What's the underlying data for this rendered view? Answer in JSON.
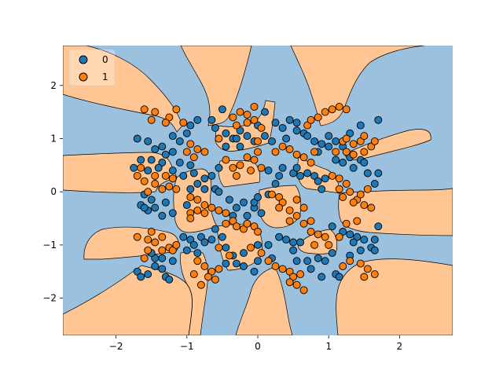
{
  "colors": {
    "class0": "#1f77b4",
    "class1": "#ff7f0e",
    "region0": "#9cc1de",
    "region1": "#ffc693",
    "edge": "#000000"
  },
  "chart_data": {
    "type": "scatter",
    "title": "",
    "xlabel": "",
    "ylabel": "",
    "xlim": [
      -2.75,
      2.75
    ],
    "ylim": [
      -2.7,
      2.75
    ],
    "xticks": [
      -2,
      -1,
      0,
      1,
      2
    ],
    "yticks": [
      -2,
      -1,
      0,
      1,
      2
    ],
    "xtick_labels": [
      "−2",
      "−1",
      "0",
      "1",
      "2"
    ],
    "ytick_labels": [
      "−2",
      "−1",
      "0",
      "1",
      "2"
    ],
    "grid": false,
    "legend_position": "top-left",
    "background": "decision regions of a two-class classifier over a checkerboard-like layout with curved boundaries",
    "series": [
      {
        "name": "0",
        "color": "#1f77b4",
        "points": [
          [
            -1.7,
            1.0
          ],
          [
            -1.55,
            0.95
          ],
          [
            -1.35,
            0.85
          ],
          [
            -1.2,
            0.75
          ],
          [
            -1.1,
            0.95
          ],
          [
            -1.0,
            1.1
          ],
          [
            -1.2,
            1.05
          ],
          [
            -1.3,
            0.7
          ],
          [
            -1.45,
            0.8
          ],
          [
            -1.65,
            0.6
          ],
          [
            -1.5,
            0.6
          ],
          [
            -1.35,
            0.55
          ],
          [
            -1.1,
            0.55
          ],
          [
            -0.95,
            0.5
          ],
          [
            -0.9,
            0.35
          ],
          [
            -1.05,
            0.3
          ],
          [
            -1.2,
            0.4
          ],
          [
            -1.4,
            0.45
          ],
          [
            -1.55,
            0.4
          ],
          [
            -1.75,
            0.45
          ],
          [
            -1.6,
            -0.05
          ],
          [
            -1.5,
            -0.15
          ],
          [
            -1.45,
            -0.3
          ],
          [
            -1.55,
            -0.35
          ],
          [
            -1.65,
            -0.25
          ],
          [
            -1.3,
            -0.2
          ],
          [
            -1.2,
            -0.4
          ],
          [
            -1.35,
            -0.45
          ],
          [
            -1.0,
            -0.25
          ],
          [
            -1.6,
            -0.3
          ],
          [
            -1.05,
            -0.85
          ],
          [
            -0.95,
            -0.9
          ],
          [
            -0.8,
            -0.85
          ],
          [
            -0.9,
            -1.0
          ],
          [
            -1.0,
            -1.1
          ],
          [
            -0.85,
            -1.15
          ],
          [
            -0.75,
            -0.95
          ],
          [
            -1.7,
            -1.5
          ],
          [
            -1.65,
            -1.6
          ],
          [
            -1.55,
            -1.55
          ],
          [
            -1.45,
            -1.4
          ],
          [
            -1.35,
            -1.45
          ],
          [
            -1.3,
            -1.6
          ],
          [
            -1.25,
            -1.65
          ],
          [
            -1.45,
            -1.25
          ],
          [
            -1.5,
            -1.15
          ],
          [
            -1.2,
            -1.3
          ],
          [
            -1.35,
            -1.25
          ],
          [
            -0.95,
            1.25
          ],
          [
            -0.85,
            1.35
          ],
          [
            -0.65,
            1.35
          ],
          [
            -0.5,
            1.55
          ],
          [
            -0.6,
            1.2
          ],
          [
            -0.45,
            1.1
          ],
          [
            -0.35,
            1.0
          ],
          [
            -0.25,
            1.15
          ],
          [
            -0.15,
            1.05
          ],
          [
            -0.05,
            0.95
          ],
          [
            0.0,
            1.25
          ],
          [
            -0.25,
            0.85
          ],
          [
            -0.45,
            0.85
          ],
          [
            -0.3,
            1.0
          ],
          [
            -0.85,
            0.15
          ],
          [
            -0.75,
            0.25
          ],
          [
            -0.65,
            0.3
          ],
          [
            -0.55,
            0.45
          ],
          [
            -0.6,
            0.05
          ],
          [
            -0.75,
            0.05
          ],
          [
            -0.95,
            0.05
          ],
          [
            -0.55,
            0.0
          ],
          [
            -0.4,
            -0.15
          ],
          [
            -0.3,
            -0.3
          ],
          [
            -0.2,
            -0.2
          ],
          [
            -0.05,
            -0.3
          ],
          [
            0.05,
            -0.4
          ],
          [
            -0.15,
            -0.45
          ],
          [
            -0.35,
            -0.45
          ],
          [
            -0.05,
            -0.2
          ],
          [
            -0.6,
            -0.7
          ],
          [
            -0.65,
            -0.9
          ],
          [
            -0.5,
            -0.85
          ],
          [
            -0.45,
            -1.05
          ],
          [
            -0.35,
            -1.2
          ],
          [
            -0.2,
            -1.15
          ],
          [
            -0.3,
            -1.35
          ],
          [
            -0.45,
            -1.35
          ],
          [
            -0.2,
            -1.4
          ],
          [
            0.0,
            -1.3
          ],
          [
            0.0,
            -1.0
          ],
          [
            -0.05,
            -1.5
          ],
          [
            0.1,
            1.5
          ],
          [
            0.25,
            1.3
          ],
          [
            0.35,
            1.2
          ],
          [
            0.45,
            1.35
          ],
          [
            0.55,
            1.3
          ],
          [
            0.65,
            1.1
          ],
          [
            0.7,
            1.05
          ],
          [
            0.55,
            1.15
          ],
          [
            0.4,
            1.0
          ],
          [
            0.1,
            1.05
          ],
          [
            0.2,
            0.95
          ],
          [
            0.15,
            0.4
          ],
          [
            0.3,
            0.3
          ],
          [
            0.35,
            0.45
          ],
          [
            0.5,
            0.35
          ],
          [
            0.6,
            0.3
          ],
          [
            0.7,
            0.35
          ],
          [
            0.8,
            0.3
          ],
          [
            0.85,
            0.2
          ],
          [
            0.9,
            0.05
          ],
          [
            0.95,
            0.25
          ],
          [
            0.55,
            0.45
          ],
          [
            0.25,
            0.15
          ],
          [
            0.15,
            -0.05
          ],
          [
            0.0,
            -0.1
          ],
          [
            0.3,
            -0.85
          ],
          [
            0.4,
            -0.9
          ],
          [
            0.5,
            -0.95
          ],
          [
            0.6,
            -0.95
          ],
          [
            0.5,
            -1.1
          ],
          [
            0.55,
            -1.3
          ],
          [
            0.7,
            -1.3
          ],
          [
            0.85,
            -1.25
          ],
          [
            0.95,
            -1.3
          ],
          [
            0.75,
            -1.45
          ],
          [
            0.9,
            -1.6
          ],
          [
            0.2,
            -1.25
          ],
          [
            0.15,
            -1.0
          ],
          [
            0.8,
            0.95
          ],
          [
            0.9,
            0.9
          ],
          [
            1.0,
            0.85
          ],
          [
            1.1,
            0.95
          ],
          [
            1.2,
            0.85
          ],
          [
            1.3,
            1.1
          ],
          [
            1.0,
            1.05
          ],
          [
            0.85,
            0.75
          ],
          [
            1.1,
            0.6
          ],
          [
            1.2,
            0.55
          ],
          [
            1.3,
            0.65
          ],
          [
            1.45,
            0.6
          ],
          [
            1.5,
            0.55
          ],
          [
            1.55,
            0.35
          ],
          [
            1.7,
            0.35
          ],
          [
            1.65,
            0.15
          ],
          [
            1.35,
            0.45
          ],
          [
            1.05,
            -0.65
          ],
          [
            1.2,
            -0.75
          ],
          [
            1.3,
            -0.8
          ],
          [
            1.4,
            -0.85
          ],
          [
            1.5,
            -0.9
          ],
          [
            1.65,
            -0.9
          ],
          [
            1.7,
            -0.65
          ],
          [
            1.6,
            -1.05
          ],
          [
            1.35,
            -0.95
          ],
          [
            1.45,
            -1.1
          ],
          [
            1.3,
            -1.2
          ],
          [
            1.05,
            -1.15
          ],
          [
            1.1,
            -1.55
          ],
          [
            1.15,
            -1.6
          ],
          [
            1.65,
            -1.1
          ],
          [
            1.7,
            1.35
          ],
          [
            1.45,
            1.25
          ]
        ]
      },
      {
        "name": "1",
        "color": "#ff7f0e",
        "points": [
          [
            -1.6,
            1.55
          ],
          [
            -1.45,
            1.5
          ],
          [
            -1.25,
            1.4
          ],
          [
            -1.15,
            1.55
          ],
          [
            -1.05,
            1.3
          ],
          [
            -1.3,
            1.3
          ],
          [
            -1.5,
            1.35
          ],
          [
            -0.95,
            0.9
          ],
          [
            -0.85,
            0.8
          ],
          [
            -0.75,
            0.75
          ],
          [
            -0.9,
            0.65
          ],
          [
            -1.0,
            0.75
          ],
          [
            -1.7,
            0.3
          ],
          [
            -1.65,
            0.45
          ],
          [
            -1.6,
            0.2
          ],
          [
            -1.45,
            0.15
          ],
          [
            -1.55,
            0.0
          ],
          [
            -1.35,
            0.05
          ],
          [
            -1.25,
            0.1
          ],
          [
            -1.2,
            0.25
          ],
          [
            -1.3,
            0.3
          ],
          [
            -1.45,
            0.3
          ],
          [
            -1.15,
            0.05
          ],
          [
            -0.95,
            -0.1
          ],
          [
            -0.85,
            -0.15
          ],
          [
            -0.75,
            -0.25
          ],
          [
            -0.85,
            -0.35
          ],
          [
            -0.95,
            -0.4
          ],
          [
            -0.75,
            -0.4
          ],
          [
            -0.65,
            -0.3
          ],
          [
            -0.95,
            -0.5
          ],
          [
            -1.7,
            -0.85
          ],
          [
            -1.55,
            -0.9
          ],
          [
            -1.45,
            -0.95
          ],
          [
            -1.5,
            -0.75
          ],
          [
            -1.35,
            -0.85
          ],
          [
            -1.25,
            -1.05
          ],
          [
            -1.35,
            -1.1
          ],
          [
            -1.2,
            -1.1
          ],
          [
            -1.15,
            -1.0
          ],
          [
            -1.55,
            -1.1
          ],
          [
            -1.6,
            -1.25
          ],
          [
            -0.85,
            -1.3
          ],
          [
            -0.75,
            -1.4
          ],
          [
            -0.65,
            -1.5
          ],
          [
            -0.55,
            -1.45
          ],
          [
            -0.7,
            -1.6
          ],
          [
            -0.6,
            -1.65
          ],
          [
            -0.8,
            -1.75
          ],
          [
            -0.9,
            -1.55
          ],
          [
            -0.55,
            1.0
          ],
          [
            -0.35,
            1.4
          ],
          [
            -0.25,
            1.5
          ],
          [
            -0.15,
            1.45
          ],
          [
            -0.05,
            1.6
          ],
          [
            -0.15,
            1.3
          ],
          [
            -0.3,
            1.25
          ],
          [
            0.05,
            1.2
          ],
          [
            0.0,
            0.95
          ],
          [
            -0.05,
            1.35
          ],
          [
            -0.45,
            0.6
          ],
          [
            -0.35,
            0.45
          ],
          [
            -0.3,
            0.3
          ],
          [
            -0.25,
            0.5
          ],
          [
            -0.1,
            0.4
          ],
          [
            -0.05,
            0.6
          ],
          [
            0.0,
            0.75
          ],
          [
            0.05,
            0.45
          ],
          [
            -0.15,
            0.65
          ],
          [
            -0.55,
            -0.35
          ],
          [
            -0.45,
            -0.4
          ],
          [
            -0.35,
            -0.55
          ],
          [
            -0.3,
            -0.65
          ],
          [
            -0.2,
            -0.7
          ],
          [
            -0.15,
            -0.6
          ],
          [
            -0.05,
            -0.65
          ],
          [
            0.0,
            -0.75
          ],
          [
            -0.45,
            -0.6
          ],
          [
            -0.55,
            -1.05
          ],
          [
            -0.4,
            -1.2
          ],
          [
            -0.1,
            -1.05
          ],
          [
            0.05,
            -1.15
          ],
          [
            0.25,
            0.75
          ],
          [
            0.35,
            0.85
          ],
          [
            0.45,
            0.8
          ],
          [
            0.55,
            0.7
          ],
          [
            0.65,
            0.65
          ],
          [
            0.75,
            0.55
          ],
          [
            0.8,
            0.75
          ],
          [
            0.7,
            1.25
          ],
          [
            0.75,
            1.35
          ],
          [
            0.85,
            1.4
          ],
          [
            0.95,
            1.5
          ],
          [
            1.05,
            1.55
          ],
          [
            1.15,
            1.6
          ],
          [
            1.25,
            1.55
          ],
          [
            0.2,
            -0.05
          ],
          [
            0.3,
            -0.1
          ],
          [
            0.35,
            -0.2
          ],
          [
            0.45,
            -0.35
          ],
          [
            0.55,
            -0.45
          ],
          [
            0.65,
            -0.3
          ],
          [
            0.75,
            -0.55
          ],
          [
            0.55,
            -0.15
          ],
          [
            0.3,
            -0.3
          ],
          [
            0.45,
            -0.55
          ],
          [
            0.15,
            -1.3
          ],
          [
            0.25,
            -1.4
          ],
          [
            0.35,
            -1.45
          ],
          [
            0.45,
            -1.5
          ],
          [
            0.5,
            -1.6
          ],
          [
            0.6,
            -1.55
          ],
          [
            0.55,
            -1.75
          ],
          [
            0.65,
            -1.85
          ],
          [
            0.45,
            -1.7
          ],
          [
            0.65,
            -0.6
          ],
          [
            0.75,
            -0.75
          ],
          [
            0.85,
            -0.8
          ],
          [
            0.95,
            -0.85
          ],
          [
            1.0,
            -1.0
          ],
          [
            1.15,
            -0.85
          ],
          [
            0.8,
            -1.0
          ],
          [
            1.1,
            0.75
          ],
          [
            1.2,
            0.95
          ],
          [
            1.25,
            1.0
          ],
          [
            1.35,
            0.9
          ],
          [
            1.45,
            0.95
          ],
          [
            1.5,
            0.75
          ],
          [
            1.6,
            0.85
          ],
          [
            1.65,
            0.95
          ],
          [
            1.5,
            1.05
          ],
          [
            1.35,
            0.7
          ],
          [
            1.25,
            0.75
          ],
          [
            1.05,
            0.3
          ],
          [
            1.15,
            0.25
          ],
          [
            1.25,
            0.15
          ],
          [
            1.3,
            0.0
          ],
          [
            1.4,
            -0.15
          ],
          [
            1.5,
            -0.25
          ],
          [
            1.6,
            -0.3
          ],
          [
            1.45,
            -0.05
          ],
          [
            1.55,
            0.05
          ],
          [
            1.2,
            -0.1
          ],
          [
            1.35,
            -0.2
          ],
          [
            1.15,
            0.05
          ],
          [
            1.55,
            -1.45
          ],
          [
            1.65,
            -1.55
          ],
          [
            1.5,
            -1.6
          ],
          [
            1.45,
            -1.35
          ],
          [
            1.3,
            -1.3
          ],
          [
            1.2,
            -1.4
          ],
          [
            1.4,
            -0.55
          ],
          [
            1.25,
            -0.6
          ]
        ]
      }
    ]
  }
}
